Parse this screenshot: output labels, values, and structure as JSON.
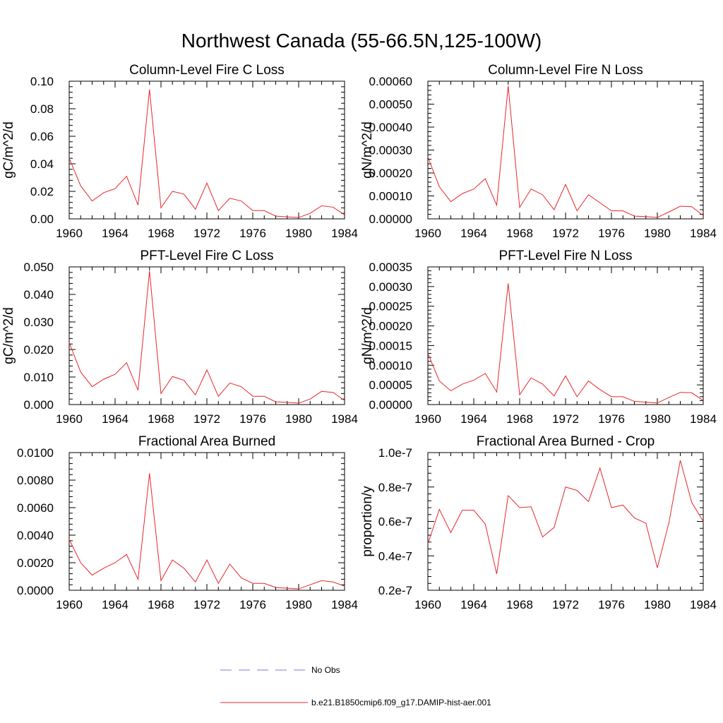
{
  "figure": {
    "title": "Northwest Canada (55-66.5N,125-100W)",
    "line_color": "#e8262b",
    "obs_color": "#7b7bd6"
  },
  "legend": {
    "entries": [
      {
        "label": "No Obs",
        "style": "dashed"
      },
      {
        "label": "b.e21.B1850cmip6.f09_g17.DAMIP-hist-aer.001",
        "style": "solid"
      }
    ]
  },
  "chart_data": [
    {
      "type": "line",
      "title": "Column-Level Fire C Loss",
      "ylabel": "gC/m^2/d",
      "xlim": [
        1960,
        1984
      ],
      "ylim": [
        0,
        0.1
      ],
      "xticks": [
        "1960",
        "1964",
        "1968",
        "1972",
        "1976",
        "1980",
        "1984"
      ],
      "yticks": [
        "0.00",
        "0.02",
        "0.04",
        "0.06",
        "0.08",
        "0.10"
      ],
      "x": [
        1960,
        1961,
        1962,
        1963,
        1964,
        1965,
        1966,
        1967,
        1968,
        1969,
        1970,
        1971,
        1972,
        1973,
        1974,
        1975,
        1976,
        1977,
        1978,
        1979,
        1980,
        1981,
        1982,
        1983,
        1984
      ],
      "series": [
        {
          "name": "b.e21.B1850cmip6.f09_g17.DAMIP-hist-aer.001",
          "values": [
            0.044,
            0.024,
            0.013,
            0.019,
            0.022,
            0.031,
            0.01,
            0.094,
            0.008,
            0.02,
            0.018,
            0.007,
            0.026,
            0.006,
            0.015,
            0.013,
            0.006,
            0.006,
            0.002,
            0.0015,
            0.001,
            0.004,
            0.0095,
            0.0085,
            0.003
          ]
        }
      ]
    },
    {
      "type": "line",
      "title": "Column-Level Fire N Loss",
      "ylabel": "gN/m^2/d",
      "xlim": [
        1960,
        1984
      ],
      "ylim": [
        0,
        0.0006
      ],
      "xticks": [
        "1960",
        "1964",
        "1968",
        "1972",
        "1976",
        "1980",
        "1984"
      ],
      "yticks": [
        "0.00000",
        "0.00010",
        "0.00020",
        "0.00030",
        "0.00040",
        "0.00050",
        "0.00060"
      ],
      "x": [
        1960,
        1961,
        1962,
        1963,
        1964,
        1965,
        1966,
        1967,
        1968,
        1969,
        1970,
        1971,
        1972,
        1973,
        1974,
        1975,
        1976,
        1977,
        1978,
        1979,
        1980,
        1981,
        1982,
        1983,
        1984
      ],
      "series": [
        {
          "name": "b.e21.B1850cmip6.f09_g17.DAMIP-hist-aer.001",
          "values": [
            0.00027,
            0.00014,
            7.5e-05,
            0.00011,
            0.00013,
            0.000175,
            6e-05,
            0.00058,
            5e-05,
            0.00013,
            0.000105,
            4e-05,
            0.00015,
            3.5e-05,
            0.000105,
            7e-05,
            3.5e-05,
            3.5e-05,
            1.2e-05,
            1e-05,
            6e-06,
            3e-05,
            5.5e-05,
            5.3e-05,
            1.5e-05
          ]
        }
      ]
    },
    {
      "type": "line",
      "title": "PFT-Level Fire C Loss",
      "ylabel": "gC/m^2/d",
      "xlim": [
        1960,
        1984
      ],
      "ylim": [
        0,
        0.05
      ],
      "xticks": [
        "1960",
        "1964",
        "1968",
        "1972",
        "1976",
        "1980",
        "1984"
      ],
      "yticks": [
        "0.000",
        "0.010",
        "0.020",
        "0.030",
        "0.040",
        "0.050"
      ],
      "x": [
        1960,
        1961,
        1962,
        1963,
        1964,
        1965,
        1966,
        1967,
        1968,
        1969,
        1970,
        1971,
        1972,
        1973,
        1974,
        1975,
        1976,
        1977,
        1978,
        1979,
        1980,
        1981,
        1982,
        1983,
        1984
      ],
      "series": [
        {
          "name": "b.e21.B1850cmip6.f09_g17.DAMIP-hist-aer.001",
          "values": [
            0.0225,
            0.0118,
            0.0065,
            0.0092,
            0.011,
            0.0152,
            0.0052,
            0.0485,
            0.004,
            0.0102,
            0.0088,
            0.0035,
            0.0126,
            0.003,
            0.0078,
            0.0065,
            0.003,
            0.003,
            0.001,
            0.0008,
            0.0005,
            0.002,
            0.0048,
            0.0044,
            0.0015
          ]
        }
      ]
    },
    {
      "type": "line",
      "title": "PFT-Level Fire N Loss",
      "ylabel": "gN/m^2/d",
      "xlim": [
        1960,
        1984
      ],
      "ylim": [
        0,
        0.00035
      ],
      "xticks": [
        "1960",
        "1964",
        "1968",
        "1972",
        "1976",
        "1980",
        "1984"
      ],
      "yticks": [
        "0.00000",
        "0.00005",
        "0.00010",
        "0.00015",
        "0.00020",
        "0.00025",
        "0.00030",
        "0.00035"
      ],
      "x": [
        1960,
        1961,
        1962,
        1963,
        1964,
        1965,
        1966,
        1967,
        1968,
        1969,
        1970,
        1971,
        1972,
        1973,
        1974,
        1975,
        1976,
        1977,
        1978,
        1979,
        1980,
        1981,
        1982,
        1983,
        1984
      ],
      "series": [
        {
          "name": "b.e21.B1850cmip6.f09_g17.DAMIP-hist-aer.001",
          "values": [
            0.00013,
            6e-05,
            3.5e-05,
            5.2e-05,
            6.2e-05,
            7.9e-05,
            3.2e-05,
            0.000308,
            2.5e-05,
            6.8e-05,
            5.2e-05,
            2.2e-05,
            7.3e-05,
            2e-05,
            6e-05,
            3.8e-05,
            2e-05,
            2e-05,
            8e-06,
            6e-06,
            4e-06,
            1.8e-05,
            3.1e-05,
            3e-05,
            1e-05
          ]
        }
      ]
    },
    {
      "type": "line",
      "title": "Fractional Area Burned",
      "ylabel": "",
      "xlim": [
        1960,
        1984
      ],
      "ylim": [
        0,
        0.01
      ],
      "xticks": [
        "1960",
        "1964",
        "1968",
        "1972",
        "1976",
        "1980",
        "1984"
      ],
      "yticks": [
        "0.0000",
        "0.0020",
        "0.0040",
        "0.0060",
        "0.0080",
        "0.0100"
      ],
      "x": [
        1960,
        1961,
        1962,
        1963,
        1964,
        1965,
        1966,
        1967,
        1968,
        1969,
        1970,
        1971,
        1972,
        1973,
        1974,
        1975,
        1976,
        1977,
        1978,
        1979,
        1980,
        1981,
        1982,
        1983,
        1984
      ],
      "series": [
        {
          "name": "b.e21.B1850cmip6.f09_g17.DAMIP-hist-aer.001",
          "values": [
            0.0037,
            0.002,
            0.0011,
            0.0016,
            0.002,
            0.0026,
            0.0008,
            0.0085,
            0.0007,
            0.0022,
            0.0016,
            0.0006,
            0.0022,
            0.0005,
            0.0019,
            0.0009,
            0.0005,
            0.0005,
            0.0002,
            0.00015,
            0.0001,
            0.0004,
            0.0007,
            0.0006,
            0.0003
          ]
        }
      ]
    },
    {
      "type": "line",
      "title": "Fractional Area Burned - Crop",
      "ylabel": "proportion/y",
      "xlim": [
        1960,
        1984
      ],
      "ylim": [
        2e-08,
        1e-07
      ],
      "xticks": [
        "1960",
        "1964",
        "1968",
        "1972",
        "1976",
        "1980",
        "1984"
      ],
      "yticks": [
        "0.2e-7",
        "0.4e-7",
        "0.6e-7",
        "0.8e-7",
        "1.0e-7"
      ],
      "x": [
        1960,
        1961,
        1962,
        1963,
        1964,
        1965,
        1966,
        1967,
        1968,
        1969,
        1970,
        1971,
        1972,
        1973,
        1974,
        1975,
        1976,
        1977,
        1978,
        1979,
        1980,
        1981,
        1982,
        1983,
        1984
      ],
      "series": [
        {
          "name": "b.e21.B1850cmip6.f09_g17.DAMIP-hist-aer.001",
          "values": [
            4.7e-08,
            6.7e-08,
            5.35e-08,
            6.65e-08,
            6.65e-08,
            5.85e-08,
            2.95e-08,
            7.5e-08,
            6.8e-08,
            6.85e-08,
            5.1e-08,
            5.65e-08,
            8e-08,
            7.8e-08,
            7.15e-08,
            9.1e-08,
            6.8e-08,
            6.95e-08,
            6.2e-08,
            5.9e-08,
            3.3e-08,
            5.9e-08,
            9.55e-08,
            7.1e-08,
            6e-08
          ]
        }
      ]
    }
  ]
}
